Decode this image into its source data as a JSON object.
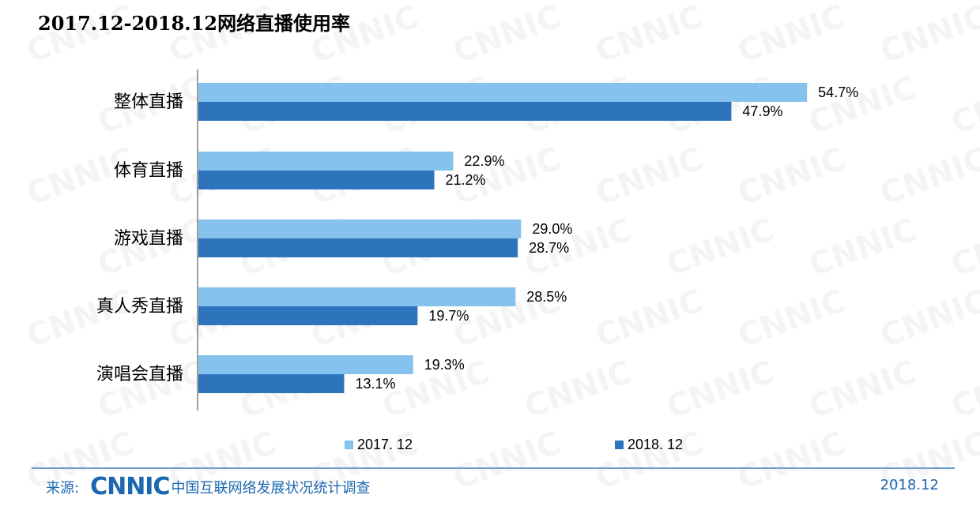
{
  "title": "2017.12-2018.12网络直播使用率",
  "footer": {
    "source_label": "来源:",
    "logo_text": "CNNIC",
    "org": "中国互联网络发展状况统计调查",
    "date": "2018.12"
  },
  "colors": {
    "series_2017": "#85c3ee",
    "series_2018": "#2e74bc",
    "axis": "#7f7f7f",
    "brand": "#1b67b0"
  },
  "chart_data": {
    "type": "bar",
    "orientation": "horizontal",
    "categories": [
      "整体直播",
      "体育直播",
      "游戏直播",
      "真人秀直播",
      "演唱会直播"
    ],
    "series": [
      {
        "name": "2017. 12",
        "values": [
          54.7,
          22.9,
          29.0,
          28.5,
          19.3
        ],
        "labels": [
          "54.7%",
          "22.9%",
          "29.0%",
          "28.5%",
          "19.3%"
        ]
      },
      {
        "name": "2018. 12",
        "values": [
          47.9,
          21.2,
          28.7,
          19.7,
          13.1
        ],
        "labels": [
          "47.9%",
          "21.2%",
          "28.7%",
          "19.7%",
          "13.1%"
        ]
      }
    ],
    "xlim": [
      0,
      75
    ],
    "grid": false,
    "legend": "bottom"
  }
}
